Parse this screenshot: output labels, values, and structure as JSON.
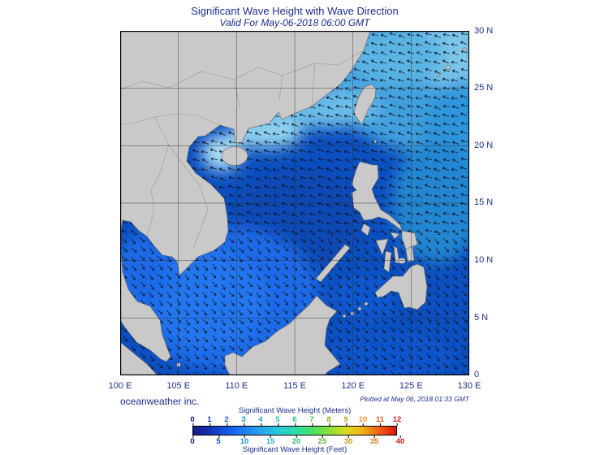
{
  "colors": {
    "text_navy": "#1c2d91",
    "land_gray": "#c9c9c9",
    "ocean_base_blue": "#0b4fc0",
    "frame_black": "#000000"
  },
  "header": {
    "title": "Significant Wave Height with Wave Direction",
    "subtitle": "Valid For May-06-2018 06:00 GMT"
  },
  "axes": {
    "lon_labels": [
      "100 E",
      "105 E",
      "110 E",
      "115 E",
      "120 E",
      "125 E",
      "130 E"
    ],
    "lat_labels": [
      "30 N",
      "25 N",
      "20 N",
      "15 N",
      "10 N",
      "5 N",
      "0"
    ]
  },
  "footer": {
    "credit": "oceanweather inc.",
    "plotted": "Plotted at May 06, 2018 01:33 GMT"
  },
  "legend": {
    "meters_label": "Significant Wave Height (Meters)",
    "feet_label": "Significant Wave Height (Feet)",
    "meters_ticks": [
      {
        "label": "0",
        "color": "#10147e"
      },
      {
        "label": "1",
        "color": "#1433c8"
      },
      {
        "label": "2",
        "color": "#1459e8"
      },
      {
        "label": "3",
        "color": "#1e86f0"
      },
      {
        "label": "4",
        "color": "#28a0d8"
      },
      {
        "label": "5",
        "color": "#28c2c0"
      },
      {
        "label": "6",
        "color": "#2cc082"
      },
      {
        "label": "7",
        "color": "#48c048"
      },
      {
        "label": "8",
        "color": "#90b428"
      },
      {
        "label": "9",
        "color": "#c0a018"
      },
      {
        "label": "10",
        "color": "#f09018"
      },
      {
        "label": "11",
        "color": "#f05818"
      },
      {
        "label": "12",
        "color": "#dc1810"
      }
    ],
    "feet_ticks": [
      {
        "label": "0",
        "pos": 0,
        "color": "#10147e"
      },
      {
        "label": "5",
        "pos": 0.127,
        "color": "#1447d8"
      },
      {
        "label": "10",
        "pos": 0.254,
        "color": "#1e88f0"
      },
      {
        "label": "15",
        "pos": 0.381,
        "color": "#28b0d0"
      },
      {
        "label": "20",
        "pos": 0.508,
        "color": "#2cc078"
      },
      {
        "label": "25",
        "pos": 0.635,
        "color": "#64b838"
      },
      {
        "label": "30",
        "pos": 0.762,
        "color": "#c0a018"
      },
      {
        "label": "35",
        "pos": 0.889,
        "color": "#f07818"
      },
      {
        "label": "40",
        "pos": 1.016,
        "color": "#dc1810"
      }
    ],
    "gradient": [
      {
        "at": 0,
        "color": "#141a82"
      },
      {
        "at": 0.08,
        "color": "#1430b4"
      },
      {
        "at": 0.17,
        "color": "#145ae8"
      },
      {
        "at": 0.25,
        "color": "#1e7cf0"
      },
      {
        "at": 0.33,
        "color": "#28a4ec"
      },
      {
        "at": 0.42,
        "color": "#28cad8"
      },
      {
        "at": 0.5,
        "color": "#2edcaa"
      },
      {
        "at": 0.58,
        "color": "#44e06a"
      },
      {
        "at": 0.67,
        "color": "#8ce038"
      },
      {
        "at": 0.75,
        "color": "#d8dc20"
      },
      {
        "at": 0.83,
        "color": "#f0b418"
      },
      {
        "at": 0.92,
        "color": "#f05c14"
      },
      {
        "at": 1,
        "color": "#dc1410"
      }
    ]
  }
}
